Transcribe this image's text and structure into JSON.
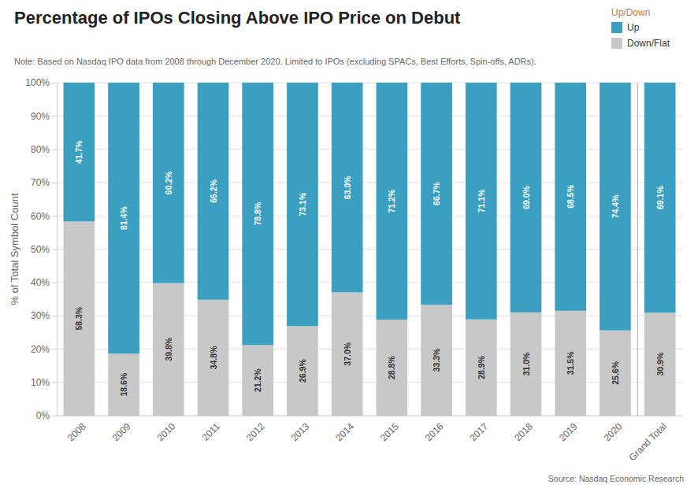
{
  "chart_data": {
    "type": "bar",
    "stacked": true,
    "title": "Percentage of IPOs Closing Above IPO Price on Debut",
    "subtitle": "Note: Based on Nasdaq IPO data from 2008 through December 2020. Limited to IPOs (excluding SPACs, Best Efforts, Spin-offs, ADRs).",
    "annotations": [
      "Source: Nasdaq Economic Research"
    ],
    "y_label": "% of Total Symbol Count",
    "categories": [
      "2008",
      "2009",
      "2010",
      "2011",
      "2012",
      "2013",
      "2014",
      "2015",
      "2016",
      "2017",
      "2018",
      "2019",
      "2020",
      "Grand Total"
    ],
    "series": [
      {
        "name": "Down/Flat",
        "color": "#c8c8c8",
        "values": [
          58.3,
          18.6,
          39.8,
          34.8,
          21.2,
          26.9,
          37.0,
          28.8,
          33.3,
          28.9,
          31.0,
          31.5,
          25.6,
          30.9
        ],
        "value_labels": [
          "58.3%",
          "18.6%",
          "39.8%",
          "34.8%",
          "21.2%",
          "26.9%",
          "37.0%",
          "28.8%",
          "33.3%",
          "28.9%",
          "31.0%",
          "31.5%",
          "25.6%",
          "30.9%"
        ]
      },
      {
        "name": "Up",
        "color": "#3a9fc0",
        "values": [
          41.7,
          81.4,
          60.2,
          65.2,
          78.8,
          73.1,
          63.0,
          71.2,
          66.7,
          71.1,
          69.0,
          68.5,
          74.4,
          69.1
        ],
        "value_labels": [
          "41.7%",
          "81.4%",
          "60.2%",
          "65.2%",
          "78.8%",
          "73.1%",
          "63.0%",
          "71.2%",
          "66.7%",
          "71.1%",
          "69.0%",
          "68.5%",
          "74.4%",
          "69.1%"
        ]
      }
    ],
    "data_labels": true,
    "ylim": [
      0,
      100
    ],
    "yticks": [
      {
        "value": 0,
        "label": "0%"
      },
      {
        "value": 10,
        "label": "10%"
      },
      {
        "value": 20,
        "label": "20%"
      },
      {
        "value": 30,
        "label": "30%"
      },
      {
        "value": 40,
        "label": "40%"
      },
      {
        "value": 50,
        "label": "50%"
      },
      {
        "value": 60,
        "label": "60%"
      },
      {
        "value": 70,
        "label": "70%"
      },
      {
        "value": 80,
        "label": "80%"
      },
      {
        "value": 90,
        "label": "90%"
      },
      {
        "value": 100,
        "label": "100%"
      }
    ],
    "grid": true,
    "legend": "top-right",
    "legend_title": "Up/Down"
  }
}
